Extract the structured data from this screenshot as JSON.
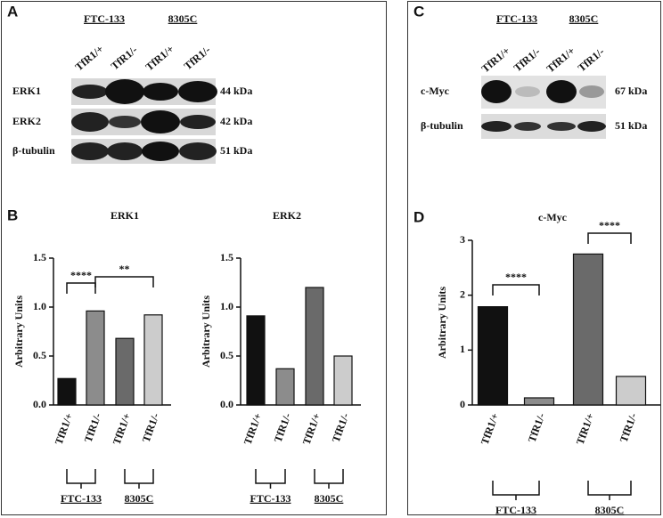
{
  "panels": {
    "a": {
      "label": "A",
      "groups": [
        "FTC-133",
        "8305C"
      ],
      "lanes": [
        "TfR1/+",
        "TfR1/-",
        "TfR1/+",
        "TfR1/-"
      ],
      "rows": [
        {
          "name": "ERK1",
          "size": "44 kDa"
        },
        {
          "name": "ERK2",
          "size": "42 kDa"
        },
        {
          "name": "β-tubulin",
          "size": "51 kDa"
        }
      ]
    },
    "b": {
      "label": "B"
    },
    "c": {
      "label": "C",
      "groups": [
        "FTC-133",
        "8305C"
      ],
      "lanes": [
        "TfR1/+",
        "TfR1/-",
        "TfR1/+",
        "TfR1/-"
      ],
      "rows": [
        {
          "name": "c-Myc",
          "size": "67 kDa"
        },
        {
          "name": "β-tubulin",
          "size": "51 kDa"
        }
      ]
    },
    "d": {
      "label": "D"
    }
  },
  "chart_data": [
    {
      "type": "bar",
      "title": "ERK1",
      "y_label": "Arbitrary Units",
      "categories": [
        "TfR1/+",
        "TfR1/-",
        "TfR1/+",
        "TfR1/-"
      ],
      "values": [
        0.27,
        0.96,
        0.68,
        0.92
      ],
      "colors": [
        "#111111",
        "#8c8c8c",
        "#6a6a6a",
        "#cccccc"
      ],
      "ylim": [
        0,
        1.5
      ],
      "yticks": [
        {
          "value": 0,
          "label": "0.0"
        },
        0.5,
        {
          "value": 1,
          "label": "1.0"
        },
        1.5
      ],
      "groups": [
        "FTC-133",
        "8305C"
      ],
      "annotations": [
        "****",
        "**"
      ]
    },
    {
      "type": "bar",
      "title": "ERK2",
      "y_label": "Arbitrary Units",
      "categories": [
        "TfR1/+",
        "TfR1/-",
        "TfR1/+",
        "TfR1/-"
      ],
      "values": [
        0.91,
        0.37,
        1.2,
        0.5
      ],
      "colors": [
        "#111111",
        "#8c8c8c",
        "#6a6a6a",
        "#cccccc"
      ],
      "ylim": [
        0,
        1.5
      ],
      "yticks": [
        {
          "value": 0,
          "label": "0.0"
        },
        0.5,
        {
          "value": 1,
          "label": "1.0"
        },
        1.5
      ],
      "groups": [
        "FTC-133",
        "8305C"
      ],
      "annotations": []
    },
    {
      "type": "bar",
      "title": "c-Myc",
      "y_label": "Arbitrary Units",
      "categories": [
        "TfR1/+",
        "TfR1/-",
        "TfR1/+",
        "TfR1/-"
      ],
      "values": [
        1.79,
        0.13,
        2.75,
        0.52
      ],
      "colors": [
        "#111111",
        "#8c8c8c",
        "#6a6a6a",
        "#cccccc"
      ],
      "ylim": [
        0,
        3
      ],
      "yticks": [
        0,
        1,
        2,
        3
      ],
      "groups": [
        "FTC-133",
        "8305C"
      ],
      "annotations": [
        "****",
        "****"
      ]
    }
  ]
}
